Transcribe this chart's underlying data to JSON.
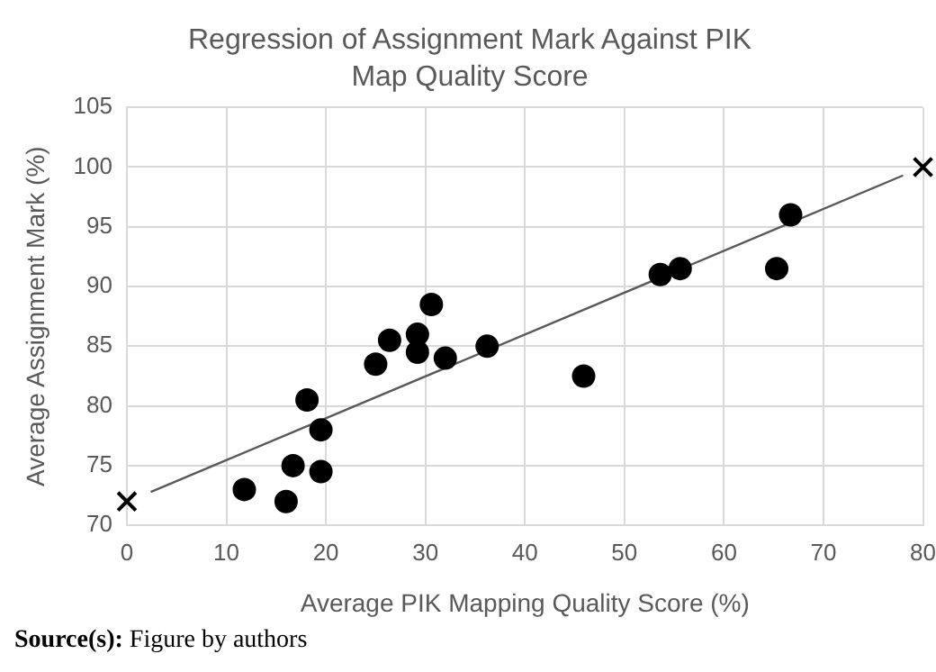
{
  "chart_data": {
    "type": "scatter",
    "title": "Regression of Assignment Mark Against PIK Map Quality Score",
    "xlabel": "Average PIK Mapping Quality Score (%)",
    "ylabel": "Average Assignment Mark (%)",
    "xlim": [
      0,
      80
    ],
    "xticks": [
      0,
      10,
      20,
      30,
      40,
      50,
      60,
      70,
      80
    ],
    "ylim": [
      70,
      105
    ],
    "yticks": [
      70,
      75,
      80,
      85,
      90,
      95,
      100,
      105
    ],
    "grid": true,
    "series": [
      {
        "type": "scatter",
        "marker": "circle",
        "color": "#000000",
        "x": [
          11.8,
          16,
          16.7,
          18.1,
          19.5,
          19.5,
          25,
          26.4,
          29.2,
          29.2,
          30.6,
          32,
          36.2,
          45.9,
          53.6,
          55.6,
          65.3,
          66.7
        ],
        "values": [
          73,
          72,
          75,
          80.5,
          78,
          74.5,
          83.5,
          85.5,
          86,
          84.5,
          88.5,
          84,
          85,
          82.5,
          91,
          91.5,
          91.5,
          96
        ]
      },
      {
        "type": "scatter",
        "marker": "cross",
        "color": "#000000",
        "x": [
          0,
          80
        ],
        "values": [
          72,
          100
        ]
      },
      {
        "type": "line",
        "marker": "none",
        "color": "#595959",
        "x": [
          2.4,
          78
        ],
        "values": [
          72.8,
          99.3
        ]
      }
    ],
    "annotations": [
      "Source(s): Figure by authors"
    ]
  }
}
